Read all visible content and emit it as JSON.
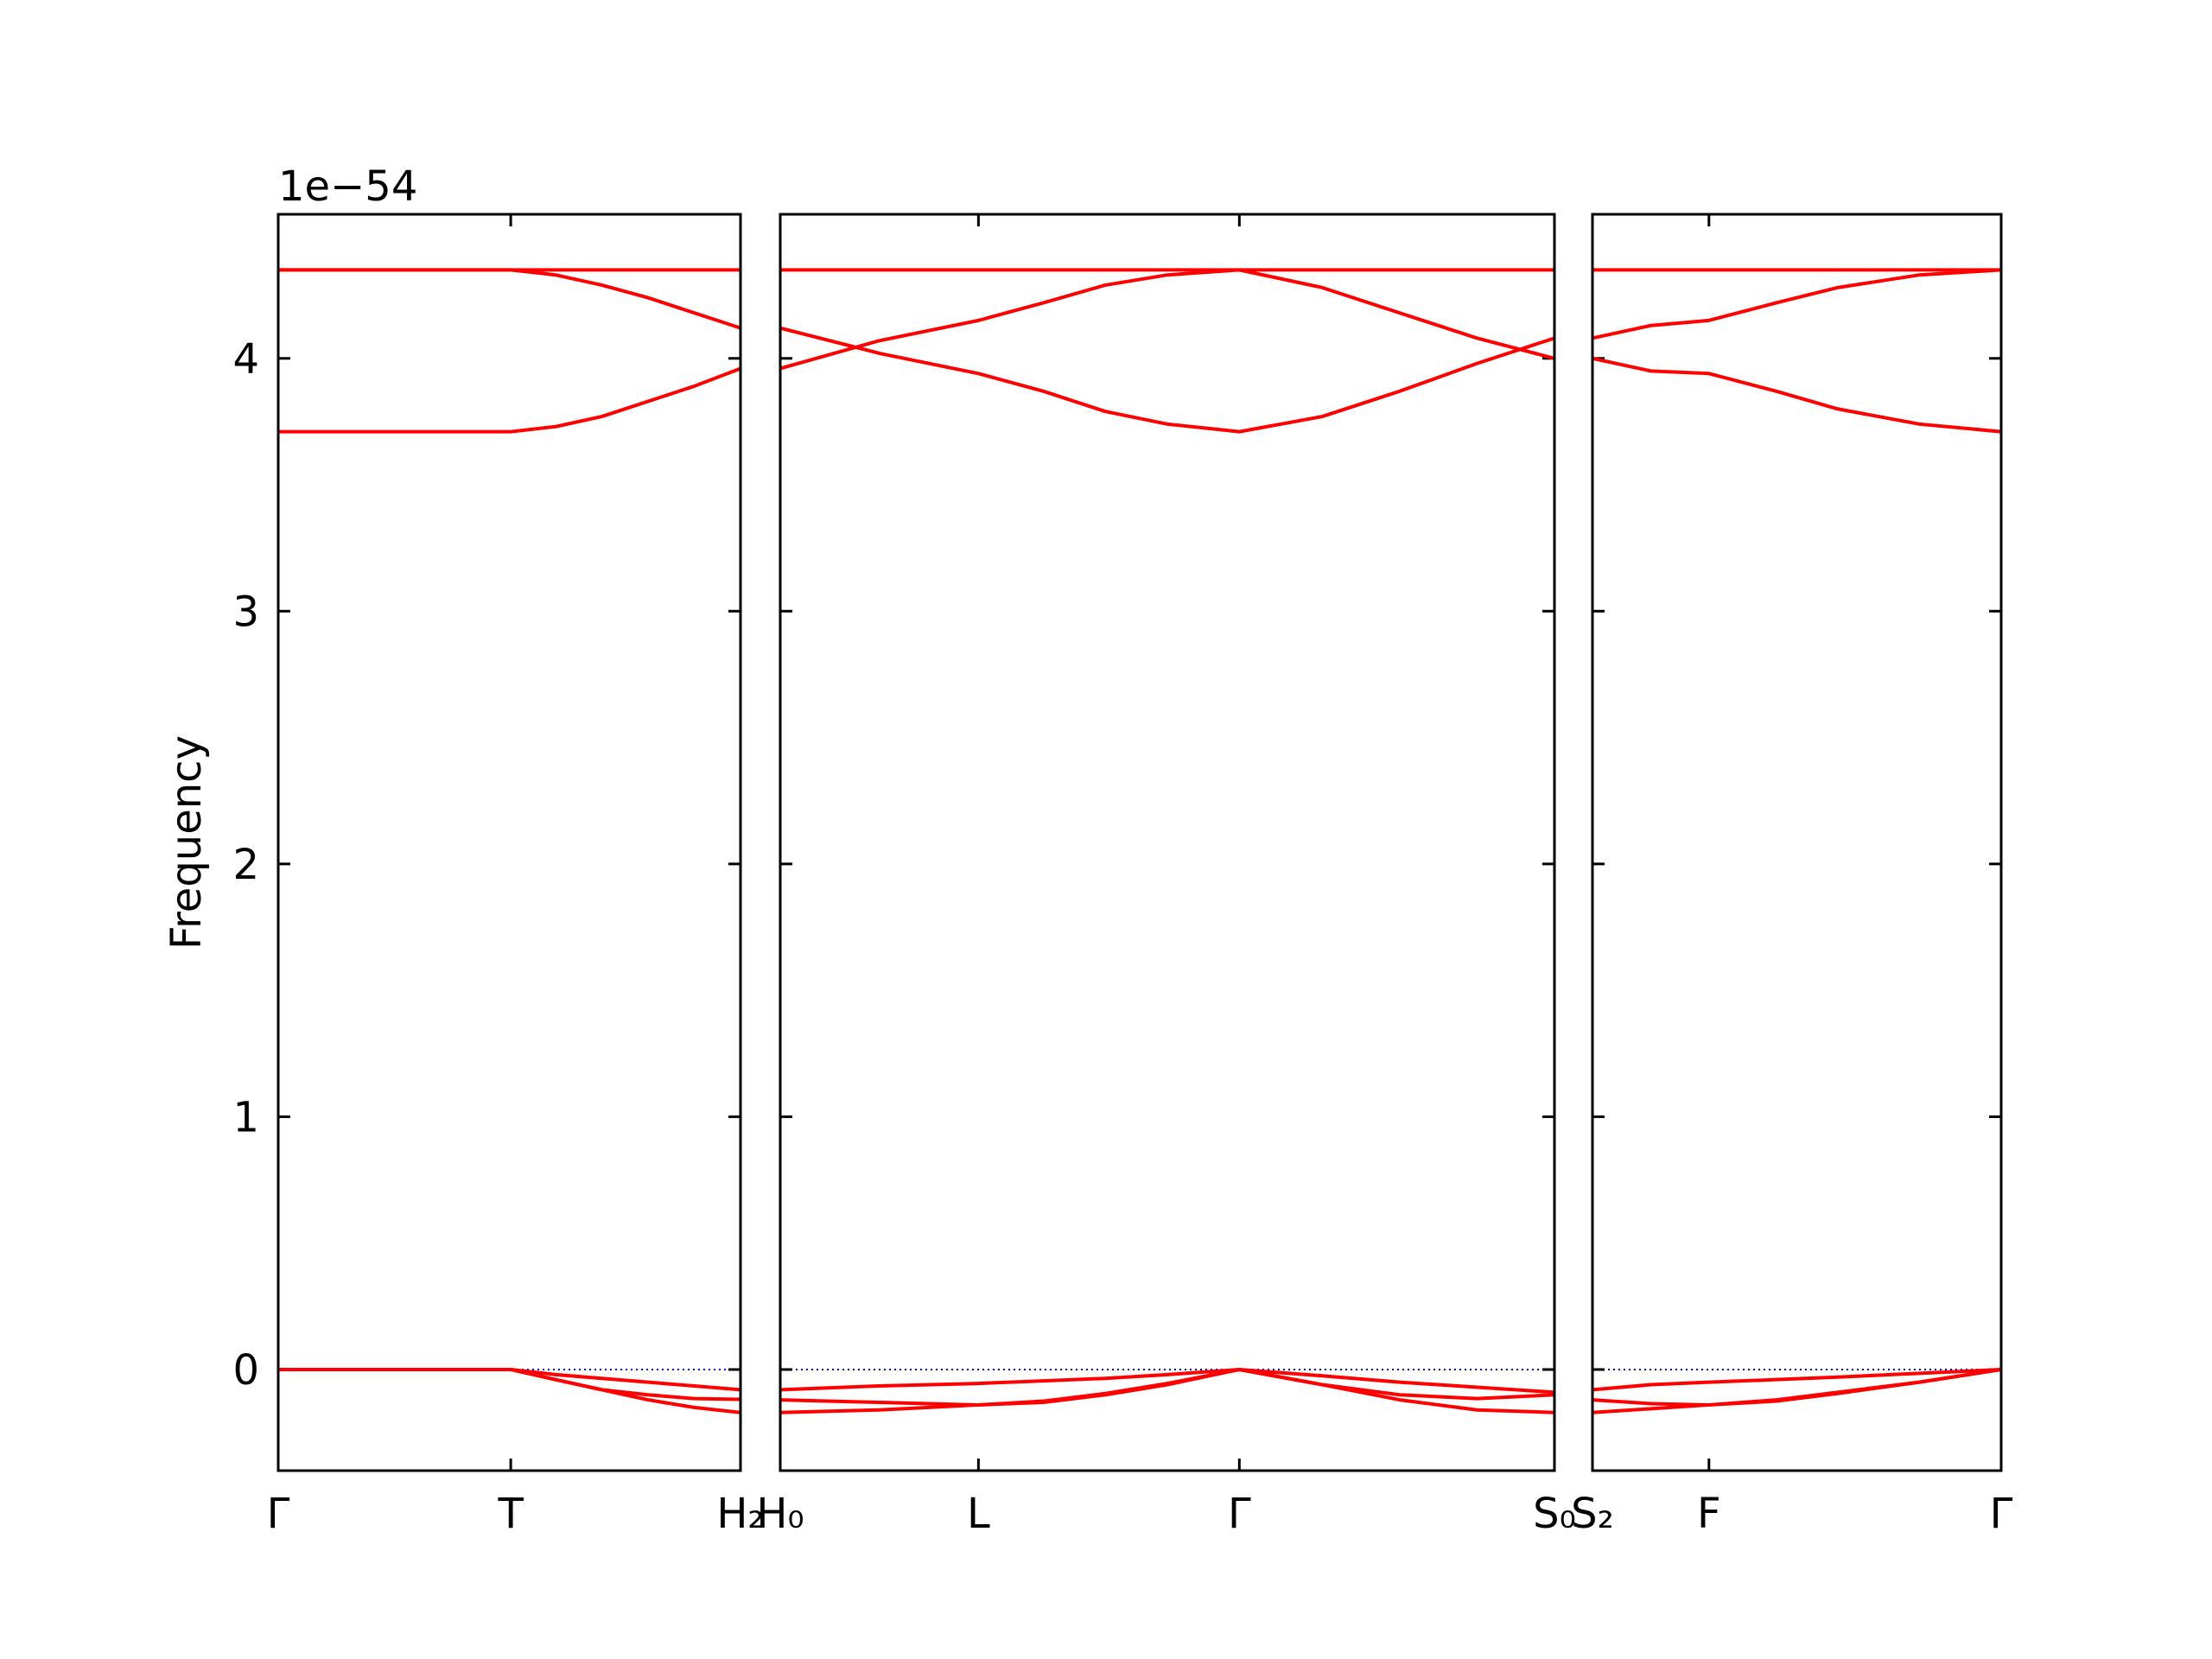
{
  "chart_data": [
    {
      "type": "line",
      "ylabel": "Frequency",
      "offset_text": "1e−54",
      "color": "#ff0000",
      "ylim": [
        -0.4,
        4.57
      ],
      "yticks": [
        0,
        1,
        2,
        3,
        4
      ],
      "hline": 0,
      "hline_color": "#0000cc",
      "xlim": [
        0,
        1
      ],
      "xticks": [
        {
          "value": 0,
          "label": "Γ"
        },
        {
          "value": 0.503,
          "label": "T"
        },
        {
          "value": 1,
          "label": "H₂"
        }
      ],
      "x": [
        0,
        0.25,
        0.503,
        0.6,
        0.7,
        0.8,
        0.9,
        1
      ],
      "series": [
        {
          "values": [
            4.35,
            4.35,
            4.35,
            4.35,
            4.35,
            4.35,
            4.35,
            4.35
          ]
        },
        {
          "values": [
            4.35,
            4.35,
            4.35,
            4.33,
            4.29,
            4.24,
            4.18,
            4.12
          ]
        },
        {
          "values": [
            3.71,
            3.71,
            3.71,
            3.73,
            3.77,
            3.83,
            3.89,
            3.96
          ]
        },
        {
          "values": [
            0,
            0,
            0,
            -0.02,
            -0.035,
            -0.05,
            -0.065,
            -0.08
          ]
        },
        {
          "values": [
            0,
            0,
            0,
            -0.04,
            -0.08,
            -0.1,
            -0.115,
            -0.118
          ]
        },
        {
          "values": [
            0,
            0,
            0,
            -0.04,
            -0.08,
            -0.12,
            -0.15,
            -0.17
          ]
        }
      ]
    },
    {
      "type": "line",
      "color": "#ff0000",
      "ylim": [
        -0.4,
        4.57
      ],
      "yticks": [
        0,
        1,
        2,
        3,
        4
      ],
      "hline": 0,
      "hline_color": "#0000cc",
      "xlim": [
        0,
        1
      ],
      "xticks": [
        {
          "value": 0,
          "label": "H₀"
        },
        {
          "value": 0.256,
          "label": "L"
        },
        {
          "value": 0.593,
          "label": "Γ"
        },
        {
          "value": 1,
          "label": "S₀"
        }
      ],
      "x": [
        0,
        0.128,
        0.256,
        0.34,
        0.42,
        0.5,
        0.593,
        0.7,
        0.8,
        0.9,
        1
      ],
      "series": [
        {
          "values": [
            4.35,
            4.35,
            4.35,
            4.35,
            4.35,
            4.35,
            4.35,
            4.35,
            4.35,
            4.35,
            4.35
          ]
        },
        {
          "values": [
            3.96,
            4.07,
            4.15,
            4.22,
            4.29,
            4.33,
            4.35,
            4.28,
            4.18,
            4.08,
            4.0
          ]
        },
        {
          "values": [
            4.12,
            4.02,
            3.94,
            3.87,
            3.79,
            3.74,
            3.71,
            3.77,
            3.87,
            3.98,
            4.08
          ]
        },
        {
          "values": [
            -0.08,
            -0.065,
            -0.055,
            -0.045,
            -0.035,
            -0.02,
            0,
            -0.025,
            -0.05,
            -0.07,
            -0.09
          ]
        },
        {
          "values": [
            -0.12,
            -0.13,
            -0.14,
            -0.13,
            -0.1,
            -0.06,
            0,
            -0.06,
            -0.1,
            -0.115,
            -0.1
          ]
        },
        {
          "values": [
            -0.17,
            -0.16,
            -0.14,
            -0.125,
            -0.095,
            -0.055,
            0,
            -0.06,
            -0.12,
            -0.16,
            -0.17
          ]
        }
      ]
    },
    {
      "type": "line",
      "color": "#ff0000",
      "ylim": [
        -0.4,
        4.57
      ],
      "yticks": [
        0,
        1,
        2,
        3,
        4
      ],
      "hline": 0,
      "hline_color": "#0000cc",
      "xlim": [
        0,
        1
      ],
      "xticks": [
        {
          "value": 0,
          "label": "S₂"
        },
        {
          "value": 0.285,
          "label": "F"
        },
        {
          "value": 1,
          "label": "Γ"
        }
      ],
      "x": [
        0,
        0.143,
        0.285,
        0.45,
        0.6,
        0.8,
        1
      ],
      "series": [
        {
          "values": [
            4.35,
            4.35,
            4.35,
            4.35,
            4.35,
            4.35,
            4.35
          ]
        },
        {
          "values": [
            4.08,
            4.13,
            4.15,
            4.22,
            4.28,
            4.33,
            4.35
          ]
        },
        {
          "values": [
            4.0,
            3.95,
            3.94,
            3.87,
            3.8,
            3.74,
            3.71
          ]
        },
        {
          "values": [
            -0.08,
            -0.06,
            -0.05,
            -0.04,
            -0.03,
            -0.015,
            0
          ]
        },
        {
          "values": [
            -0.12,
            -0.135,
            -0.14,
            -0.12,
            -0.09,
            -0.05,
            0
          ]
        },
        {
          "values": [
            -0.17,
            -0.155,
            -0.14,
            -0.125,
            -0.095,
            -0.05,
            0
          ]
        }
      ]
    }
  ]
}
